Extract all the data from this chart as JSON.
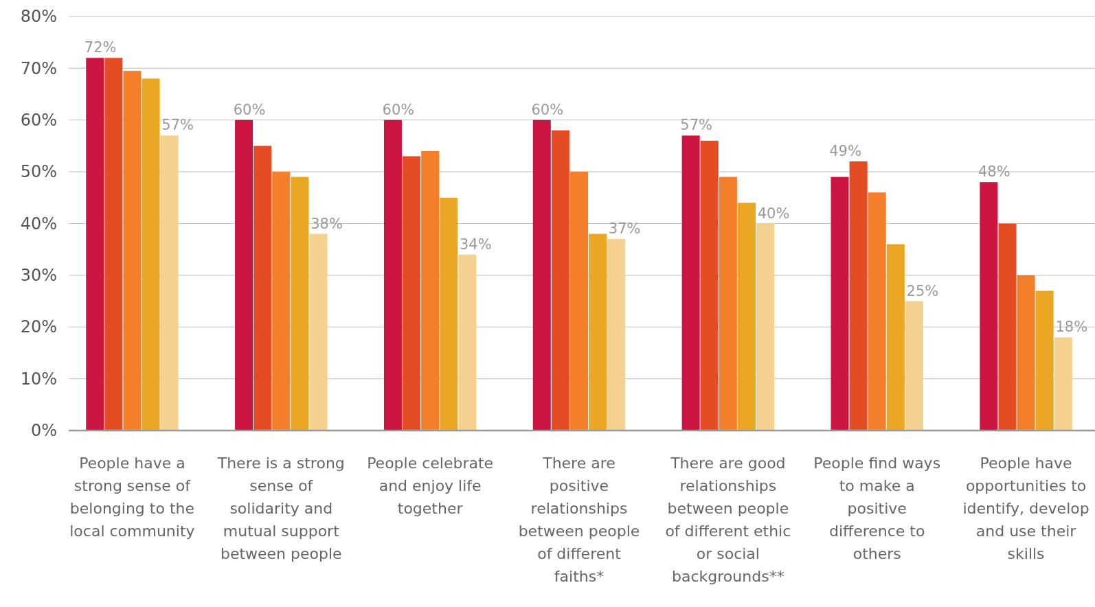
{
  "chart_data": {
    "type": "bar",
    "categories": [
      "People have a strong sense of belonging to the local community",
      "There is a strong sense of solidarity and mutual support between people",
      "People celebrate and enjoy life together",
      "There are positive relationships between people of different faiths*",
      "There are good relationships between people of different ethic or social backgrounds**",
      "People find ways to make a positive difference to others",
      "People have opportunities to identify, develop and use their skills"
    ],
    "series": [
      {
        "color": "#cc1540",
        "values": [
          72,
          60,
          60,
          60,
          57,
          49,
          48
        ],
        "value_labels": [
          "72%",
          "60%",
          "60%",
          "60%",
          "57%",
          "49%",
          "48%"
        ]
      },
      {
        "color": "#e44c24",
        "values": [
          72,
          55,
          53,
          58,
          56,
          52,
          40
        ]
      },
      {
        "color": "#f47f2b",
        "values": [
          69.5,
          50,
          54,
          50,
          49,
          46,
          30
        ]
      },
      {
        "color": "#eaa723",
        "values": [
          68,
          49,
          45,
          38,
          44,
          36,
          27
        ]
      },
      {
        "color": "#f5d190",
        "values": [
          57,
          38,
          34,
          37,
          40,
          25,
          18
        ],
        "value_labels": [
          "57%",
          "38%",
          "34%",
          "37%",
          "40%",
          "25%",
          "18%"
        ]
      }
    ],
    "ylim": [
      0,
      80
    ],
    "yticks": [
      {
        "value": 0,
        "label": "0%"
      },
      {
        "value": 10,
        "label": "10%"
      },
      {
        "value": 20,
        "label": "20%"
      },
      {
        "value": 30,
        "label": "30%"
      },
      {
        "value": 40,
        "label": "40%"
      },
      {
        "value": 50,
        "label": "50%"
      },
      {
        "value": 60,
        "label": "60%"
      },
      {
        "value": 70,
        "label": "70%"
      },
      {
        "value": 80,
        "label": "80%"
      }
    ],
    "grid": "y"
  }
}
